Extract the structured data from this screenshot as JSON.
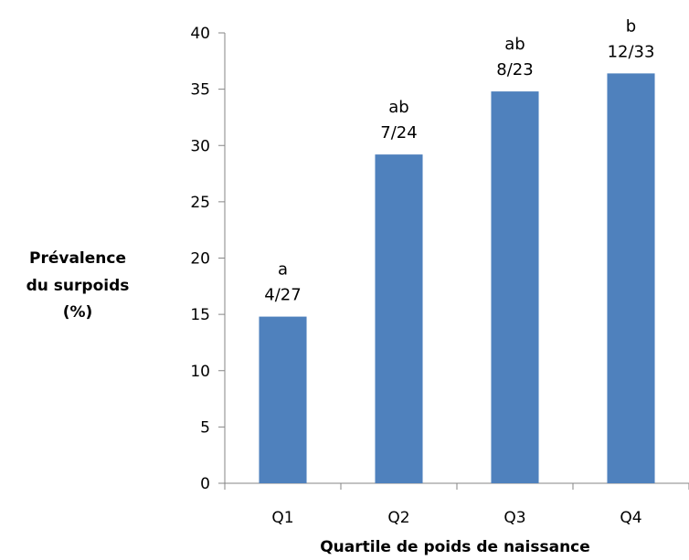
{
  "chart_data": {
    "type": "bar",
    "categories": [
      "Q1",
      "Q2",
      "Q3",
      "Q4"
    ],
    "values": [
      14.8,
      29.2,
      34.8,
      36.4
    ],
    "letters": [
      "a",
      "ab",
      "ab",
      "b"
    ],
    "ratios": [
      "4/27",
      "7/24",
      "8/23",
      "12/33"
    ],
    "xlabel": "Quartile de poids de naissance",
    "ylabel": [
      "Prévalence",
      "du surpoids",
      "(%)"
    ],
    "ylim": [
      0,
      40
    ],
    "yticks": [
      0,
      5,
      10,
      15,
      20,
      25,
      30,
      35,
      40
    ],
    "grid": false,
    "legend": "none",
    "bar_color": "#4f81bd"
  }
}
